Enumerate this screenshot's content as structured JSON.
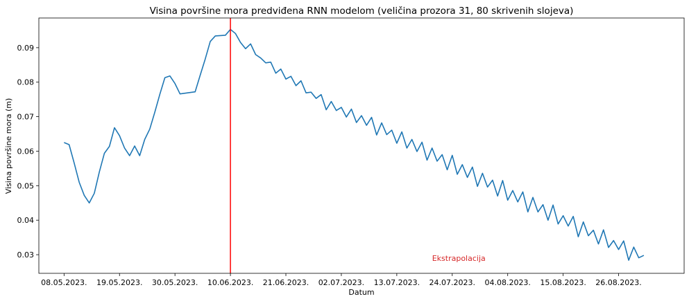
{
  "chart_data": {
    "type": "line",
    "title": "Visina površine mora predviđena RNN modelom (veličina prozora 31, 80 skrivenih slojeva)",
    "xlabel": "Datum",
    "ylabel": "Visina površine mora (m)",
    "x_start": "2023-05-08",
    "x_ticks": [
      {
        "date": "2023-05-08",
        "label": "08.05.2023."
      },
      {
        "date": "2023-05-19",
        "label": "19.05.2023."
      },
      {
        "date": "2023-05-30",
        "label": "30.05.2023."
      },
      {
        "date": "2023-06-10",
        "label": "10.06.2023."
      },
      {
        "date": "2023-06-21",
        "label": "21.06.2023."
      },
      {
        "date": "2023-07-02",
        "label": "02.07.2023."
      },
      {
        "date": "2023-07-13",
        "label": "13.07.2023."
      },
      {
        "date": "2023-07-24",
        "label": "24.07.2023."
      },
      {
        "date": "2023-08-04",
        "label": "04.08.2023."
      },
      {
        "date": "2023-08-15",
        "label": "15.08.2023."
      },
      {
        "date": "2023-08-26",
        "label": "26.08.2023."
      }
    ],
    "y_ticks": [
      {
        "value": 0.03,
        "label": "0.03"
      },
      {
        "value": 0.04,
        "label": "0.04"
      },
      {
        "value": 0.05,
        "label": "0.05"
      },
      {
        "value": 0.06,
        "label": "0.06"
      },
      {
        "value": 0.07,
        "label": "0.07"
      },
      {
        "value": 0.08,
        "label": "0.08"
      },
      {
        "value": 0.09,
        "label": "0.09"
      }
    ],
    "xlim": [
      "2023-05-03",
      "2023-09-08"
    ],
    "ylim": [
      0.0246,
      0.0986
    ],
    "grid": false,
    "series": [
      {
        "color": "#1f77b4",
        "values": [
          0.0625,
          0.0619,
          0.0566,
          0.051,
          0.0472,
          0.045,
          0.0478,
          0.054,
          0.0594,
          0.0614,
          0.0668,
          0.0645,
          0.0609,
          0.0587,
          0.0615,
          0.0587,
          0.0634,
          0.0664,
          0.0713,
          0.0765,
          0.0813,
          0.0818,
          0.0796,
          0.0766,
          0.0768,
          0.077,
          0.0772,
          0.082,
          0.0867,
          0.0918,
          0.0934,
          0.0935,
          0.0936,
          0.0953,
          0.0941,
          0.0915,
          0.0897,
          0.0911,
          0.088,
          0.087,
          0.0856,
          0.0858,
          0.0826,
          0.0838,
          0.0809,
          0.0817,
          0.079,
          0.0804,
          0.0769,
          0.0771,
          0.0753,
          0.0764,
          0.072,
          0.0744,
          0.0718,
          0.0727,
          0.0699,
          0.0722,
          0.0683,
          0.0703,
          0.0675,
          0.0698,
          0.0647,
          0.0682,
          0.0648,
          0.0661,
          0.0623,
          0.0656,
          0.0609,
          0.0634,
          0.0599,
          0.0626,
          0.0574,
          0.0609,
          0.0571,
          0.059,
          0.0546,
          0.0588,
          0.0533,
          0.0561,
          0.0524,
          0.0554,
          0.0498,
          0.0536,
          0.0496,
          0.0516,
          0.047,
          0.0515,
          0.0458,
          0.0486,
          0.0453,
          0.0482,
          0.0424,
          0.0466,
          0.0424,
          0.0445,
          0.04,
          0.0444,
          0.0389,
          0.0413,
          0.0383,
          0.0411,
          0.0352,
          0.0395,
          0.0355,
          0.0371,
          0.0331,
          0.0372,
          0.0321,
          0.0341,
          0.0315,
          0.034,
          0.0284,
          0.0322,
          0.0291,
          0.0298
        ]
      }
    ],
    "vline": {
      "date": "2023-06-10",
      "color": "#ff0000"
    },
    "annotation": {
      "text": "Ekstrapolacija",
      "date": "2023-07-20",
      "value": 0.0282,
      "color": "#d62728"
    }
  }
}
